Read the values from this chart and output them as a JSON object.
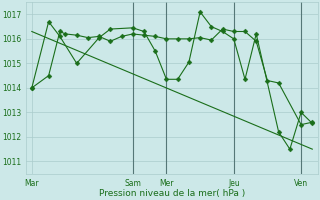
{
  "background_color": "#cce8e8",
  "grid_color": "#aacccc",
  "line_color": "#1a6e1a",
  "marker_color": "#1a6e1a",
  "xlabel": "Pression niveau de la mer( hPa )",
  "ylim": [
    1010.5,
    1017.5
  ],
  "yticks": [
    1011,
    1012,
    1013,
    1014,
    1015,
    1016,
    1017
  ],
  "xtick_labels": [
    "Mar",
    "Sam",
    "Mer",
    "Jeu",
    "Ven"
  ],
  "xtick_positions": [
    0,
    18,
    24,
    36,
    48
  ],
  "vline_positions": [
    18,
    24,
    36,
    48
  ],
  "xlim": [
    -1,
    51
  ],
  "series1_x": [
    0,
    3,
    5,
    6,
    8,
    10,
    12,
    14,
    16,
    18,
    20,
    22,
    24,
    26,
    28,
    30,
    32,
    34,
    36,
    38,
    40,
    42,
    44,
    48,
    50
  ],
  "series1_y": [
    1014.0,
    1014.5,
    1016.3,
    1016.2,
    1016.15,
    1016.05,
    1016.1,
    1015.9,
    1016.1,
    1016.2,
    1016.15,
    1016.1,
    1016.0,
    1016.0,
    1016.0,
    1016.05,
    1015.95,
    1016.4,
    1016.3,
    1016.3,
    1015.9,
    1014.3,
    1014.2,
    1012.5,
    1012.6
  ],
  "series2_x": [
    0,
    3,
    5,
    8,
    12,
    14,
    18,
    20,
    22,
    24,
    26,
    28,
    30,
    32,
    34,
    36,
    38,
    40,
    44,
    46,
    48,
    50
  ],
  "series2_y": [
    1014.0,
    1016.7,
    1016.1,
    1015.0,
    1016.05,
    1016.4,
    1016.45,
    1016.3,
    1015.5,
    1014.35,
    1014.35,
    1015.05,
    1017.1,
    1016.5,
    1016.3,
    1016.0,
    1014.35,
    1016.2,
    1012.2,
    1011.5,
    1013.0,
    1012.55
  ],
  "trend_x": [
    0,
    50
  ],
  "trend_y": [
    1016.3,
    1011.5
  ]
}
